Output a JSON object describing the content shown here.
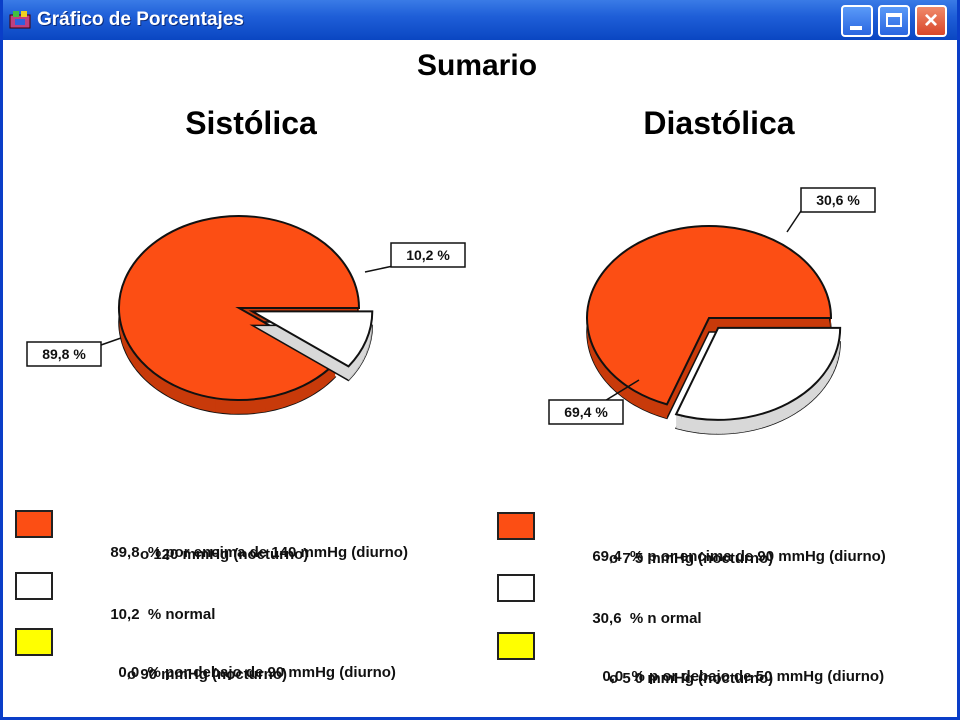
{
  "window": {
    "title": "Gráfico de Porcentajes",
    "buttons": {
      "minimize": "minimize",
      "maximize": "maximize",
      "close": "×"
    }
  },
  "colors": {
    "above": "#fc4e14",
    "normal": "#ffffff",
    "below": "#ffff00",
    "titlebar": "#1f5fd8"
  },
  "chart_data": [
    {
      "type": "pie",
      "title": "Sumario",
      "subtitle": "Sistólica",
      "slices": [
        {
          "label": "89,8 %",
          "value": 89.8,
          "color": "#fc4e14"
        },
        {
          "label": "10,2 %",
          "value": 10.2,
          "color": "#ffffff"
        }
      ]
    },
    {
      "type": "pie",
      "title": "Sumario",
      "subtitle": "Diastólica",
      "slices": [
        {
          "label": "69,4 %",
          "value": 69.4,
          "color": "#fc4e14"
        },
        {
          "label": "30,6 %",
          "value": 30.6,
          "color": "#ffffff"
        }
      ]
    }
  ],
  "heading": "Sumario",
  "left_title": "Sistólica",
  "right_title": "Diastólica",
  "legend_left": [
    {
      "value": "89,8",
      "line1": "% por encima de 140 mmHg (diurno)",
      "line2": "o 120 mmHg (nocturno)",
      "color": "#fc4e14"
    },
    {
      "value": "10,2",
      "line1": "% normal",
      "line2": "",
      "color": "#ffffff"
    },
    {
      "value": "0,0",
      "line1": "% por debajo de 90 mmHg (diurno)",
      "line2": "o 90 mmHg (nocturno)",
      "color": "#ffff00"
    }
  ],
  "legend_right": [
    {
      "value": "69,4",
      "line1": "% p or encima de 90 mmHg (diurno)",
      "line2": "o 7 5 mmHg (nocturno)",
      "color": "#fc4e14"
    },
    {
      "value": "30,6",
      "line1": "% n ormal",
      "line2": "",
      "color": "#ffffff"
    },
    {
      "value": "0,0",
      "line1": "% p or debajo de 50 mmHg (diurno)",
      "line2": "o 5 0 mmHg (nocturno)",
      "color": "#ffff00"
    }
  ]
}
